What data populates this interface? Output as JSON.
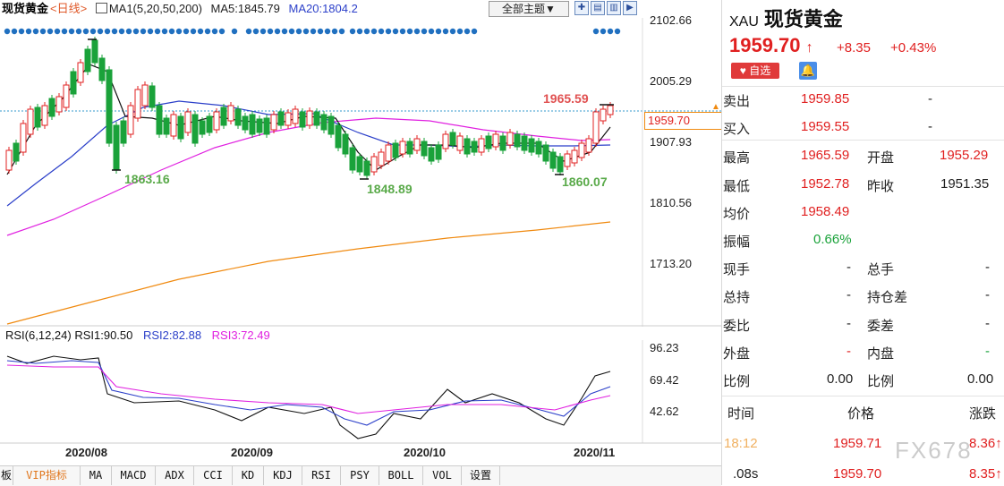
{
  "header": {
    "symbol": "现货黄金",
    "period": "<日线>",
    "ma1": "MA1(5,20,50,200)",
    "ma5": "MA5:1845.79",
    "ma20": "MA20:1804.2",
    "theme_button": "全部主题▼"
  },
  "price_axis": [
    "2102.66",
    "2005.29",
    "1907.93",
    "1810.56",
    "1713.20"
  ],
  "current_price_tag": "1959.70",
  "annotations": {
    "high": "1965.59",
    "low1": "1863.16",
    "low2": "1848.89",
    "low3": "1860.07"
  },
  "rsi": {
    "title": "RSI(6,12,24)",
    "rsi1": "RSI1:90.50",
    "rsi2": "RSI2:82.88",
    "rsi3": "RSI3:72.49",
    "axis": [
      "96.23",
      "69.42",
      "42.62"
    ]
  },
  "dates": [
    "2020/08",
    "2020/09",
    "2020/10",
    "2020/11"
  ],
  "tabs": [
    "板",
    "VIP指标",
    "MA",
    "MACD",
    "ADX",
    "CCI",
    "KD",
    "KDJ",
    "RSI",
    "PSY",
    "BOLL",
    "VOL",
    "设置"
  ],
  "quote": {
    "code": "XAU",
    "name": "现货黄金",
    "price": "1959.70",
    "arrow": "↑",
    "change": "+8.35",
    "change_pct": "+0.43%",
    "fav_label": "自选",
    "sell_label": "卖出",
    "sell_price": "1959.85",
    "sell_vol": "-",
    "buy_label": "买入",
    "buy_price": "1959.55",
    "buy_vol": "-",
    "high_label": "最高",
    "high": "1965.59",
    "open_label": "开盘",
    "open": "1955.29",
    "low_label": "最低",
    "low": "1952.78",
    "prev_label": "昨收",
    "prev": "1951.35",
    "avg_label": "均价",
    "avg": "1958.49",
    "amp_label": "振幅",
    "amp": "0.66%",
    "vol_label": "现手",
    "vol": "-",
    "total_label": "总手",
    "total": "-",
    "hold_label": "总持",
    "hold": "-",
    "holddiff_label": "持仓差",
    "holddiff": "-",
    "bidratio_label": "委比",
    "bidratio": "-",
    "biddiff_label": "委差",
    "biddiff": "-",
    "outer_label": "外盘",
    "outer": "-",
    "inner_label": "内盘",
    "inner": "-",
    "ratio1_label": "比例",
    "ratio1": "0.00",
    "ratio2_label": "比例",
    "ratio2": "0.00"
  },
  "ticks": {
    "head_time": "时间",
    "head_price": "价格",
    "head_change": "涨跌",
    "rows": [
      {
        "time": "18:12",
        "price": "1959.71",
        "change": "8.36",
        "arrow": "↑"
      },
      {
        "time": ".08s",
        "price": "1959.70",
        "change": "8.35",
        "arrow": "↑"
      }
    ]
  },
  "watermark": "FX678",
  "colors": {
    "up": "#e02020",
    "down": "#1aa23a",
    "ma_black": "#111111",
    "ma_blue": "#2b3fc9",
    "ma_magenta": "#e020e0",
    "ma_orange": "#f08a10"
  }
}
